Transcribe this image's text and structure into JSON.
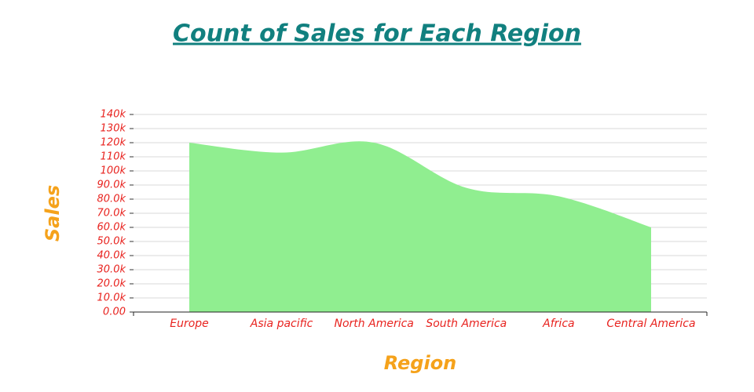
{
  "chart_data": {
    "type": "area",
    "title": "Count of Sales for Each Region",
    "x_label": "Region",
    "y_label": "Sales",
    "categories": [
      "Europe",
      "Asia pacific",
      "North America",
      "South America",
      "Africa",
      "Central America"
    ],
    "values": [
      120000,
      113000,
      120000,
      88000,
      82000,
      60000
    ],
    "color": "#90ee90",
    "ylim": [
      0,
      140000
    ],
    "yticks": [
      {
        "value": 0,
        "label": "0.00"
      },
      {
        "value": 10000,
        "label": "10.0k"
      },
      {
        "value": 20000,
        "label": "20.0k"
      },
      {
        "value": 30000,
        "label": "30.0k"
      },
      {
        "value": 40000,
        "label": "40.0k"
      },
      {
        "value": 50000,
        "label": "50.0k"
      },
      {
        "value": 60000,
        "label": "60.0k"
      },
      {
        "value": 70000,
        "label": "70.0k"
      },
      {
        "value": 80000,
        "label": "80.0k"
      },
      {
        "value": 90000,
        "label": "90.0k"
      },
      {
        "value": 100000,
        "label": "100k"
      },
      {
        "value": 110000,
        "label": "110k"
      },
      {
        "value": 120000,
        "label": "120k"
      },
      {
        "value": 130000,
        "label": "130k"
      },
      {
        "value": 140000,
        "label": "140k"
      }
    ],
    "grid": true
  }
}
